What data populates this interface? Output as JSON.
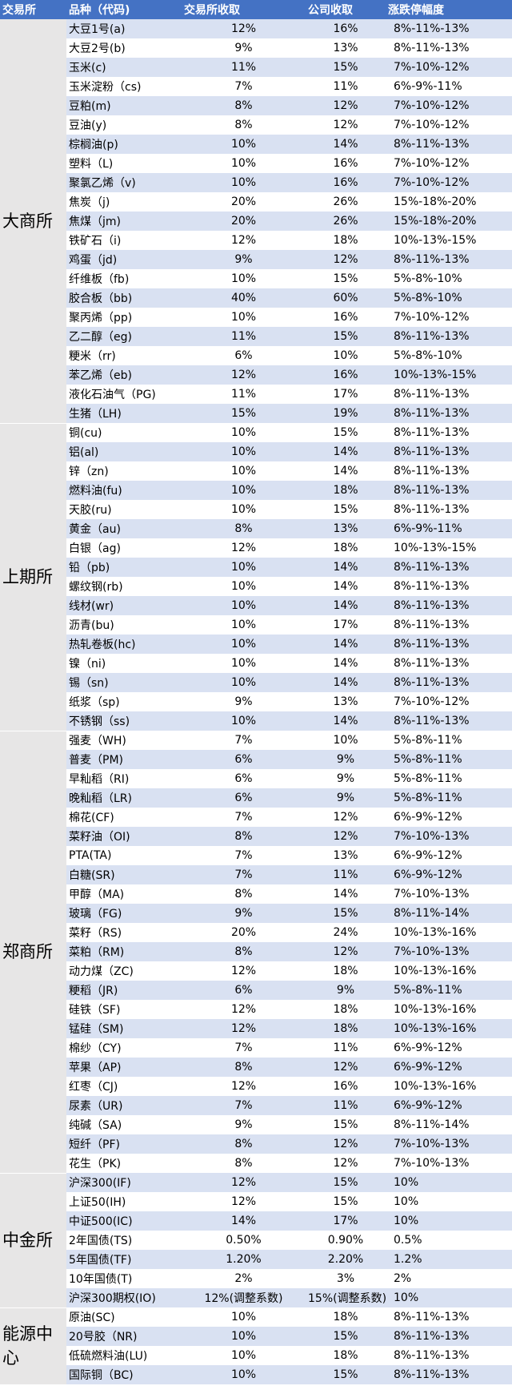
{
  "table": {
    "header": [
      "交易所",
      "品种（代码)",
      "交易所收取",
      "公司收取",
      "涨跌停幅度"
    ],
    "groups": [
      {
        "exchange": "大商所",
        "rows": [
          [
            "大豆1号(a)",
            "12%",
            "16%",
            "8%-11%-13%"
          ],
          [
            "大豆2号(b)",
            "9%",
            "13%",
            "8%-11%-13%"
          ],
          [
            "玉米(c)",
            "11%",
            "15%",
            "7%-10%-12%"
          ],
          [
            "玉米淀粉（cs)",
            "7%",
            "11%",
            "6%-9%-11%"
          ],
          [
            "豆粕(m)",
            "8%",
            "12%",
            "7%-10%-12%"
          ],
          [
            "豆油(y)",
            "8%",
            "12%",
            "7%-10%-12%"
          ],
          [
            "棕榈油(p)",
            "10%",
            "14%",
            "8%-11%-13%"
          ],
          [
            "塑料（L)",
            "10%",
            "16%",
            "7%-10%-12%"
          ],
          [
            "聚氯乙烯（v)",
            "10%",
            "16%",
            "7%-10%-12%"
          ],
          [
            "焦炭（j)",
            "20%",
            "26%",
            "15%-18%-20%"
          ],
          [
            "焦煤（jm)",
            "20%",
            "26%",
            "15%-18%-20%"
          ],
          [
            "铁矿石（i)",
            "12%",
            "18%",
            "10%-13%-15%"
          ],
          [
            "鸡蛋（jd)",
            "9%",
            "12%",
            "8%-11%-13%"
          ],
          [
            "纤维板（fb)",
            "10%",
            "15%",
            "5%-8%-10%"
          ],
          [
            "胶合板（bb)",
            "40%",
            "60%",
            "5%-8%-10%"
          ],
          [
            "聚丙烯（pp)",
            "10%",
            "16%",
            "7%-10%-12%"
          ],
          [
            "乙二醇（eg)",
            "11%",
            "15%",
            "8%-11%-13%"
          ],
          [
            "粳米（rr)",
            "6%",
            "10%",
            "5%-8%-10%"
          ],
          [
            "苯乙烯（eb)",
            "12%",
            "16%",
            "10%-13%-15%"
          ],
          [
            "液化石油气（PG)",
            "11%",
            "17%",
            "8%-11%-13%"
          ],
          [
            "生猪（LH)",
            "15%",
            "19%",
            "8%-11%-13%"
          ]
        ]
      },
      {
        "exchange": "上期所",
        "rows": [
          [
            "铜(cu)",
            "10%",
            "15%",
            "8%-11%-13%"
          ],
          [
            "铝(al)",
            "10%",
            "14%",
            "8%-11%-13%"
          ],
          [
            "锌（zn)",
            "10%",
            "14%",
            "8%-11%-13%"
          ],
          [
            "燃料油(fu)",
            "10%",
            "18%",
            "8%-11%-13%"
          ],
          [
            "天胶(ru)",
            "10%",
            "15%",
            "8%-11%-13%"
          ],
          [
            "黄金（au)",
            "8%",
            "13%",
            "6%-9%-11%"
          ],
          [
            "白银（ag)",
            "12%",
            "18%",
            "10%-13%-15%"
          ],
          [
            "铅（pb)",
            "10%",
            "14%",
            "8%-11%-13%"
          ],
          [
            "螺纹钢(rb)",
            "10%",
            "14%",
            "8%-11%-13%"
          ],
          [
            "线材(wr)",
            "10%",
            "14%",
            "8%-11%-13%"
          ],
          [
            "沥青(bu)",
            "10%",
            "17%",
            "8%-11%-13%"
          ],
          [
            "热轧卷板(hc)",
            "10%",
            "14%",
            "8%-11%-13%"
          ],
          [
            "镍（ni)",
            "10%",
            "14%",
            "8%-11%-13%"
          ],
          [
            "锡（sn)",
            "10%",
            "14%",
            "8%-11%-13%"
          ],
          [
            "纸浆（sp)",
            "9%",
            "13%",
            "7%-10%-12%"
          ],
          [
            "不锈钢（ss)",
            "10%",
            "14%",
            "8%-11%-13%"
          ]
        ]
      },
      {
        "exchange": "郑商所",
        "rows": [
          [
            "强麦（WH)",
            "7%",
            "10%",
            "5%-8%-11%"
          ],
          [
            "普麦（PM)",
            "6%",
            "9%",
            "5%-8%-11%"
          ],
          [
            "早籼稻（RI)",
            "6%",
            "9%",
            "5%-8%-11%"
          ],
          [
            "晚籼稻（LR)",
            "6%",
            "9%",
            "5%-8%-11%"
          ],
          [
            "棉花(CF)",
            "7%",
            "12%",
            "6%-9%-12%"
          ],
          [
            "菜籽油（OI)",
            "8%",
            "12%",
            "7%-10%-13%"
          ],
          [
            "PTA(TA)",
            "7%",
            "13%",
            "6%-9%-12%"
          ],
          [
            "白糖(SR)",
            "7%",
            "11%",
            "6%-9%-12%"
          ],
          [
            "甲醇（MA)",
            "8%",
            "14%",
            "7%-10%-13%"
          ],
          [
            "玻璃（FG)",
            "9%",
            "15%",
            "8%-11%-14%"
          ],
          [
            "菜籽（RS)",
            "20%",
            "24%",
            "10%-13%-16%"
          ],
          [
            "菜粕（RM)",
            "8%",
            "12%",
            "7%-10%-13%"
          ],
          [
            "动力煤（ZC)",
            "12%",
            "18%",
            "10%-13%-16%"
          ],
          [
            "粳稻（JR)",
            "6%",
            "9%",
            "5%-8%-11%"
          ],
          [
            "硅铁（SF)",
            "12%",
            "18%",
            "10%-13%-16%"
          ],
          [
            "锰硅（SM)",
            "12%",
            "18%",
            "10%-13%-16%"
          ],
          [
            "棉纱（CY)",
            "7%",
            "11%",
            "6%-9%-12%"
          ],
          [
            "苹果（AP)",
            "8%",
            "12%",
            "6%-9%-12%"
          ],
          [
            "红枣（CJ)",
            "12%",
            "16%",
            "10%-13%-16%"
          ],
          [
            "尿素（UR)",
            "7%",
            "11%",
            "6%-9%-12%"
          ],
          [
            "纯碱（SA)",
            "9%",
            "15%",
            "8%-11%-14%"
          ],
          [
            "短纤（PF)",
            "8%",
            "12%",
            "7%-10%-13%"
          ],
          [
            "花生（PK)",
            "8%",
            "12%",
            "7%-10%-13%"
          ]
        ]
      },
      {
        "exchange": "中金所",
        "rows": [
          [
            "沪深300(IF)",
            "12%",
            "15%",
            "10%"
          ],
          [
            "上证50(IH)",
            "12%",
            "15%",
            "10%"
          ],
          [
            "中证500(IC)",
            "14%",
            "17%",
            "10%"
          ],
          [
            "2年国债(TS)",
            "0.50%",
            "0.90%",
            "0.5%"
          ],
          [
            "5年国债(TF)",
            "1.20%",
            "2.20%",
            "1.2%"
          ],
          [
            "10年国债(T)",
            "2%",
            "3%",
            "2%"
          ],
          [
            "沪深300期权(IO)",
            "12%(调整系数)",
            "15%(调整系数)",
            "10%"
          ]
        ]
      },
      {
        "exchange": "能源中心",
        "rows": [
          [
            "原油(SC)",
            "10%",
            "18%",
            "8%-11%-13%"
          ],
          [
            "20号胶（NR)",
            "10%",
            "15%",
            "8%-11%-13%"
          ],
          [
            "低硫燃料油(LU)",
            "10%",
            "18%",
            "8%-11%-13%"
          ],
          [
            "国际铜（BC)",
            "10%",
            "15%",
            "8%-11%-13%"
          ]
        ]
      }
    ]
  }
}
